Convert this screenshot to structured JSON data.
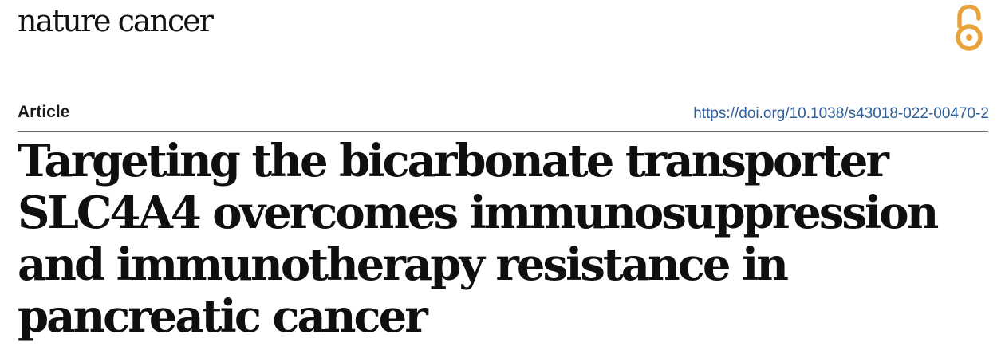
{
  "header": {
    "journal": "nature cancer",
    "open_access_icon": "open-access-icon",
    "accent_color": "#e8a33d"
  },
  "article": {
    "type": "Article",
    "doi": "https://doi.org/10.1038/s43018-022-00470-2",
    "title_lines": [
      "Targeting the bicarbonate transporter",
      "SLC4A4 overcomes immunosuppression",
      "and immunotherapy resistance in",
      "pancreatic cancer"
    ]
  }
}
